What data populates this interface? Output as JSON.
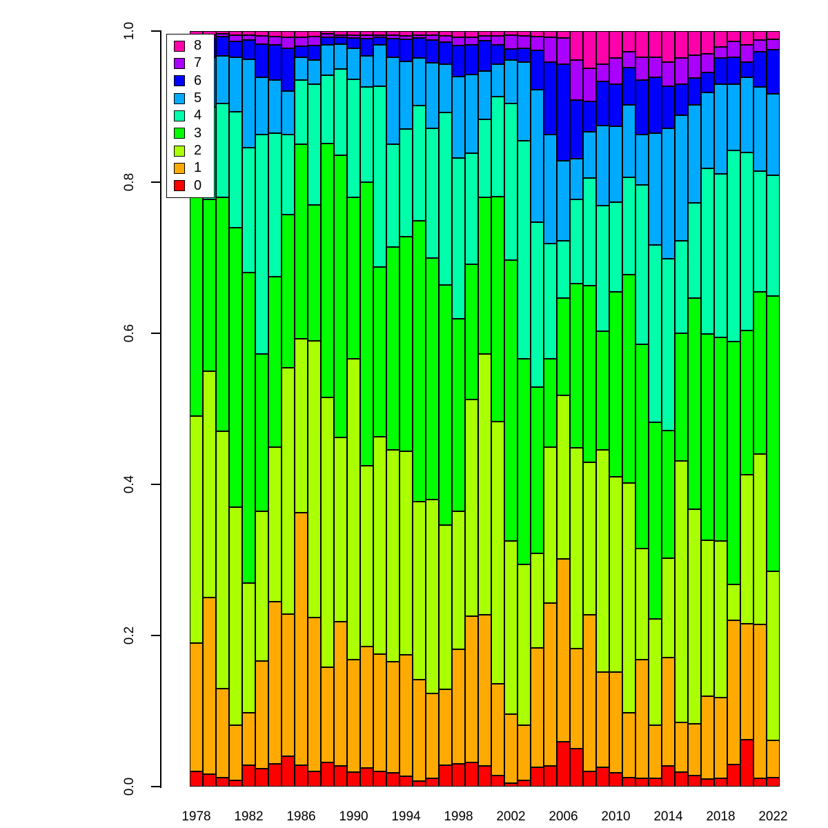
{
  "figure": {
    "background": "#FFFFFF"
  },
  "y_axis": {
    "ticks": [
      {
        "label": "0.0",
        "value": 0.0
      },
      {
        "label": "0.2",
        "value": 0.2
      },
      {
        "label": "0.4",
        "value": 0.4
      },
      {
        "label": "0.6",
        "value": 0.6
      },
      {
        "label": "0.8",
        "value": 0.8
      },
      {
        "label": "1.0",
        "value": 1.0
      }
    ]
  },
  "x_axis": {
    "tick_labels": [
      "1978",
      "1982",
      "1986",
      "1990",
      "1994",
      "1998",
      "2002",
      "2006",
      "2010",
      "2014",
      "2018",
      "2022"
    ]
  },
  "legend": {
    "position": "top-left",
    "entries": [
      {
        "label": "8",
        "color": "#FF00AA"
      },
      {
        "label": "7",
        "color": "#AA00FF"
      },
      {
        "label": "6",
        "color": "#0000FF"
      },
      {
        "label": "5",
        "color": "#00AAFF"
      },
      {
        "label": "4",
        "color": "#00FFAA"
      },
      {
        "label": "3",
        "color": "#00FF00"
      },
      {
        "label": "2",
        "color": "#AAFF00"
      },
      {
        "label": "1",
        "color": "#FFAA00"
      },
      {
        "label": "0",
        "color": "#FF0000"
      }
    ]
  },
  "chart_data": {
    "type": "bar",
    "stacked": true,
    "normalized": true,
    "grid": false,
    "ylim": [
      0,
      1
    ],
    "legend_position": "top-left",
    "title": "",
    "xlabel": "",
    "ylabel": "",
    "categories": [
      1978,
      1979,
      1980,
      1981,
      1982,
      1983,
      1984,
      1985,
      1986,
      1987,
      1988,
      1989,
      1990,
      1991,
      1992,
      1993,
      1994,
      1995,
      1996,
      1997,
      1998,
      1999,
      2000,
      2001,
      2002,
      2003,
      2004,
      2005,
      2006,
      2007,
      2008,
      2009,
      2010,
      2011,
      2012,
      2013,
      2014,
      2015,
      2016,
      2017,
      2018,
      2019,
      2020,
      2021,
      2022
    ],
    "series": [
      {
        "name": "0",
        "color": "#FF0000",
        "values": [
          0.02,
          0.016,
          0.012,
          0.008,
          0.028,
          0.024,
          0.03,
          0.04,
          0.028,
          0.02,
          0.032,
          0.027,
          0.019,
          0.025,
          0.02,
          0.018,
          0.014,
          0.007,
          0.011,
          0.028,
          0.03,
          0.032,
          0.027,
          0.015,
          0.005,
          0.008,
          0.026,
          0.027,
          0.059,
          0.05,
          0.02,
          0.026,
          0.018,
          0.012,
          0.011,
          0.011,
          0.027,
          0.019,
          0.015,
          0.01,
          0.011,
          0.029,
          0.062,
          0.011,
          0.012
        ]
      },
      {
        "name": "1",
        "color": "#FFAA00",
        "values": [
          0.17,
          0.234,
          0.118,
          0.073,
          0.07,
          0.142,
          0.215,
          0.188,
          0.335,
          0.204,
          0.126,
          0.191,
          0.149,
          0.16,
          0.155,
          0.147,
          0.16,
          0.135,
          0.112,
          0.101,
          0.152,
          0.193,
          0.2,
          0.121,
          0.091,
          0.073,
          0.158,
          0.216,
          0.242,
          0.133,
          0.208,
          0.126,
          0.134,
          0.086,
          0.157,
          0.07,
          0.144,
          0.066,
          0.068,
          0.11,
          0.107,
          0.191,
          0.154,
          0.204,
          0.049
        ]
      },
      {
        "name": "2",
        "color": "#AAFF00",
        "values": [
          0.3,
          0.3,
          0.34,
          0.289,
          0.171,
          0.198,
          0.204,
          0.326,
          0.23,
          0.366,
          0.357,
          0.244,
          0.398,
          0.24,
          0.288,
          0.281,
          0.27,
          0.235,
          0.257,
          0.217,
          0.183,
          0.287,
          0.346,
          0.347,
          0.229,
          0.213,
          0.125,
          0.206,
          0.217,
          0.266,
          0.202,
          0.294,
          0.258,
          0.304,
          0.147,
          0.141,
          0.132,
          0.346,
          0.284,
          0.206,
          0.207,
          0.048,
          0.197,
          0.225,
          0.224
        ]
      },
      {
        "name": "3",
        "color": "#00FF00",
        "values": [
          0.3,
          0.227,
          0.31,
          0.37,
          0.411,
          0.209,
          0.226,
          0.203,
          0.257,
          0.18,
          0.336,
          0.374,
          0.214,
          0.375,
          0.225,
          0.268,
          0.284,
          0.372,
          0.32,
          0.318,
          0.255,
          0.179,
          0.207,
          0.298,
          0.372,
          0.273,
          0.22,
          0.117,
          0.129,
          0.217,
          0.234,
          0.157,
          0.245,
          0.276,
          0.27,
          0.26,
          0.169,
          0.169,
          0.28,
          0.274,
          0.27,
          0.321,
          0.191,
          0.215,
          0.365
        ]
      },
      {
        "name": "4",
        "color": "#00FFAA",
        "values": [
          0.11,
          0.123,
          0.124,
          0.153,
          0.166,
          0.29,
          0.19,
          0.106,
          0.085,
          0.16,
          0.091,
          0.114,
          0.156,
          0.126,
          0.239,
          0.136,
          0.142,
          0.152,
          0.172,
          0.228,
          0.213,
          0.147,
          0.103,
          0.132,
          0.207,
          0.289,
          0.219,
          0.153,
          0.075,
          0.112,
          0.142,
          0.166,
          0.119,
          0.128,
          0.211,
          0.235,
          0.227,
          0.122,
          0.126,
          0.219,
          0.216,
          0.253,
          0.235,
          0.16,
          0.16
        ]
      },
      {
        "name": "5",
        "color": "#00AAFF",
        "values": [
          0.065,
          0.065,
          0.063,
          0.072,
          0.117,
          0.076,
          0.07,
          0.058,
          0.03,
          0.032,
          0.04,
          0.033,
          0.041,
          0.041,
          0.055,
          0.115,
          0.09,
          0.063,
          0.087,
          0.064,
          0.108,
          0.104,
          0.064,
          0.043,
          0.058,
          0.104,
          0.175,
          0.144,
          0.106,
          0.054,
          0.062,
          0.106,
          0.1,
          0.096,
          0.067,
          0.148,
          0.173,
          0.167,
          0.129,
          0.101,
          0.119,
          0.088,
          0.1,
          0.111,
          0.108
        ]
      },
      {
        "name": "6",
        "color": "#0000FF",
        "values": [
          0.025,
          0.025,
          0.026,
          0.021,
          0.025,
          0.044,
          0.047,
          0.056,
          0.015,
          0.019,
          0.01,
          0.009,
          0.014,
          0.023,
          0.01,
          0.025,
          0.029,
          0.027,
          0.03,
          0.029,
          0.041,
          0.039,
          0.04,
          0.026,
          0.014,
          0.018,
          0.052,
          0.096,
          0.128,
          0.078,
          0.04,
          0.058,
          0.056,
          0.05,
          0.072,
          0.074,
          0.056,
          0.041,
          0.036,
          0.026,
          0.034,
          0.035,
          0.02,
          0.047,
          0.058
        ]
      },
      {
        "name": "7",
        "color": "#AA00FF",
        "values": [
          0.005,
          0.005,
          0.003,
          0.009,
          0.007,
          0.011,
          0.011,
          0.015,
          0.012,
          0.012,
          0.004,
          0.003,
          0.004,
          0.005,
          0.003,
          0.005,
          0.005,
          0.004,
          0.007,
          0.009,
          0.011,
          0.01,
          0.007,
          0.012,
          0.019,
          0.017,
          0.019,
          0.033,
          0.035,
          0.053,
          0.044,
          0.023,
          0.034,
          0.021,
          0.03,
          0.026,
          0.032,
          0.034,
          0.03,
          0.025,
          0.015,
          0.021,
          0.023,
          0.015,
          0.014
        ]
      },
      {
        "name": "8",
        "color": "#FF00AA",
        "values": [
          0.005,
          0.005,
          0.004,
          0.005,
          0.005,
          0.006,
          0.007,
          0.008,
          0.008,
          0.007,
          0.004,
          0.005,
          0.005,
          0.005,
          0.005,
          0.005,
          0.006,
          0.005,
          0.005,
          0.006,
          0.008,
          0.008,
          0.006,
          0.006,
          0.005,
          0.006,
          0.007,
          0.008,
          0.009,
          0.038,
          0.049,
          0.044,
          0.036,
          0.027,
          0.035,
          0.035,
          0.041,
          0.036,
          0.032,
          0.03,
          0.021,
          0.014,
          0.018,
          0.012,
          0.011
        ]
      }
    ]
  }
}
